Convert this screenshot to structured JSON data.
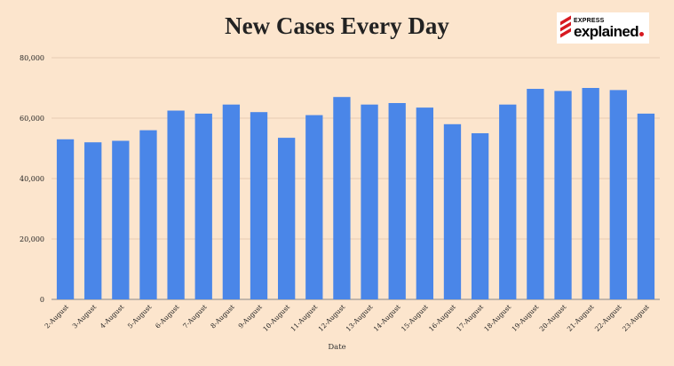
{
  "branding": {
    "kicker": "EXPRESS",
    "name": "explained"
  },
  "chart_data": {
    "type": "bar",
    "title": "New Cases Every Day",
    "xlabel": "Date",
    "ylabel": "",
    "ylim": [
      0,
      80000
    ],
    "yticks": [
      0,
      20000,
      40000,
      60000,
      80000
    ],
    "ytick_labels": [
      "0",
      "20,000",
      "40,000",
      "60,000",
      "80,000"
    ],
    "grid": true,
    "legend": "none",
    "bar_color": "#4A86E8",
    "categories": [
      "2-August",
      "3-August",
      "4-August",
      "5-August",
      "6-August",
      "7-August",
      "8-August",
      "9-August",
      "10-August",
      "11-August",
      "12-August",
      "13-August",
      "14-August",
      "15-August",
      "16-August",
      "17-August",
      "18-August",
      "19-August",
      "20-August",
      "21-August",
      "22-August",
      "23-August"
    ],
    "values": [
      53000,
      52000,
      52500,
      56000,
      62500,
      61500,
      64500,
      62000,
      53500,
      61000,
      67000,
      64500,
      65000,
      63500,
      58000,
      55000,
      64500,
      69700,
      69000,
      70000,
      69300,
      61500
    ]
  }
}
